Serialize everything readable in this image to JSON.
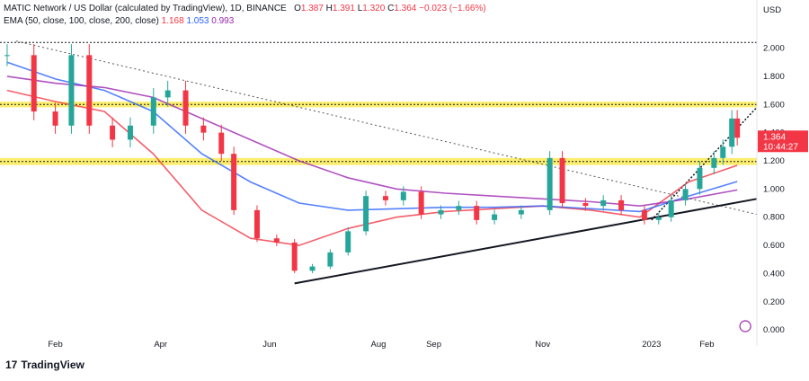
{
  "legend": {
    "symbol": "MATIC Network / US Dollar (calculated by TradingView), 1D, BINANCE",
    "o_label": "O",
    "o": "1.387",
    "h_label": "H",
    "h": "1.391",
    "l_label": "L",
    "l": "1.320",
    "c_label": "C",
    "c": "1.364",
    "change": "−0.023 (−1.66%)",
    "ema_label": "EMA (50, close, 100, close, 200, close)",
    "ema50": "1.168",
    "ema100": "1.053",
    "ema200": "0.993"
  },
  "price_badge": {
    "price": "1.364",
    "countdown": "10:44:27"
  },
  "currency": "USD",
  "brand": "TradingView",
  "colors": {
    "up": "#26a69a",
    "down": "#f23645",
    "ema50": "#f23645",
    "ema100": "#2962ff",
    "ema200": "#9c27b0",
    "zone": "#f9e83d"
  },
  "chart_data": {
    "type": "candlestick",
    "title": "MATIC Network / US Dollar (calculated by TradingView), 1D, BINANCE",
    "ylabel": "USD",
    "ylim": [
      -0.05,
      2.15
    ],
    "y_ticks": [
      "2.000",
      "1.800",
      "1.600",
      "1.400",
      "1.200",
      "1.000",
      "0.800",
      "0.600",
      "0.400",
      "0.200",
      "0.000"
    ],
    "x_ticks": [
      "Feb",
      "Apr",
      "Jun",
      "Aug",
      "Sep",
      "Nov",
      "2023",
      "Feb"
    ],
    "resistance_zones": [
      [
        1.58,
        1.62
      ],
      [
        1.17,
        1.22
      ]
    ],
    "horizontal_dotted": [
      2.04
    ],
    "price_series": [
      {
        "x": "2022-01-05",
        "y": 1.95
      },
      {
        "x": "2022-01-20",
        "y": 1.55
      },
      {
        "x": "2022-02-01",
        "y": 1.45
      },
      {
        "x": "2022-02-10",
        "y": 1.95
      },
      {
        "x": "2022-02-20",
        "y": 1.45
      },
      {
        "x": "2022-03-05",
        "y": 1.35
      },
      {
        "x": "2022-03-15",
        "y": 1.45
      },
      {
        "x": "2022-03-28",
        "y": 1.65
      },
      {
        "x": "2022-04-05",
        "y": 1.7
      },
      {
        "x": "2022-04-15",
        "y": 1.45
      },
      {
        "x": "2022-04-25",
        "y": 1.4
      },
      {
        "x": "2022-05-05",
        "y": 1.25
      },
      {
        "x": "2022-05-12",
        "y": 0.85
      },
      {
        "x": "2022-05-25",
        "y": 0.65
      },
      {
        "x": "2022-06-05",
        "y": 0.62
      },
      {
        "x": "2022-06-15",
        "y": 0.42
      },
      {
        "x": "2022-06-25",
        "y": 0.45
      },
      {
        "x": "2022-07-05",
        "y": 0.55
      },
      {
        "x": "2022-07-15",
        "y": 0.7
      },
      {
        "x": "2022-07-25",
        "y": 0.95
      },
      {
        "x": "2022-08-05",
        "y": 0.92
      },
      {
        "x": "2022-08-15",
        "y": 0.98
      },
      {
        "x": "2022-08-25",
        "y": 0.82
      },
      {
        "x": "2022-09-05",
        "y": 0.85
      },
      {
        "x": "2022-09-15",
        "y": 0.88
      },
      {
        "x": "2022-09-25",
        "y": 0.78
      },
      {
        "x": "2022-10-05",
        "y": 0.82
      },
      {
        "x": "2022-10-20",
        "y": 0.85
      },
      {
        "x": "2022-11-05",
        "y": 1.22
      },
      {
        "x": "2022-11-12",
        "y": 0.9
      },
      {
        "x": "2022-11-25",
        "y": 0.88
      },
      {
        "x": "2022-12-05",
        "y": 0.92
      },
      {
        "x": "2022-12-15",
        "y": 0.85
      },
      {
        "x": "2022-12-28",
        "y": 0.78
      },
      {
        "x": "2023-01-05",
        "y": 0.8
      },
      {
        "x": "2023-01-12",
        "y": 0.92
      },
      {
        "x": "2023-01-20",
        "y": 1.0
      },
      {
        "x": "2023-01-28",
        "y": 1.15
      },
      {
        "x": "2023-02-05",
        "y": 1.22
      },
      {
        "x": "2023-02-10",
        "y": 1.3
      },
      {
        "x": "2023-02-15",
        "y": 1.5
      },
      {
        "x": "2023-02-18",
        "y": 1.364
      }
    ],
    "series": [
      {
        "name": "EMA 50",
        "values": [
          1.7,
          1.62,
          1.55,
          1.25,
          0.85,
          0.65,
          0.6,
          0.72,
          0.8,
          0.84,
          0.86,
          0.88,
          0.85,
          0.8,
          1.05,
          1.168
        ]
      },
      {
        "name": "EMA 100",
        "values": [
          1.9,
          1.78,
          1.7,
          1.55,
          1.25,
          1.05,
          0.9,
          0.85,
          0.86,
          0.87,
          0.87,
          0.88,
          0.86,
          0.84,
          0.95,
          1.053
        ]
      },
      {
        "name": "EMA 200",
        "values": [
          1.8,
          1.75,
          1.72,
          1.65,
          1.5,
          1.35,
          1.2,
          1.08,
          1.0,
          0.97,
          0.95,
          0.93,
          0.91,
          0.88,
          0.93,
          0.993
        ]
      }
    ]
  }
}
